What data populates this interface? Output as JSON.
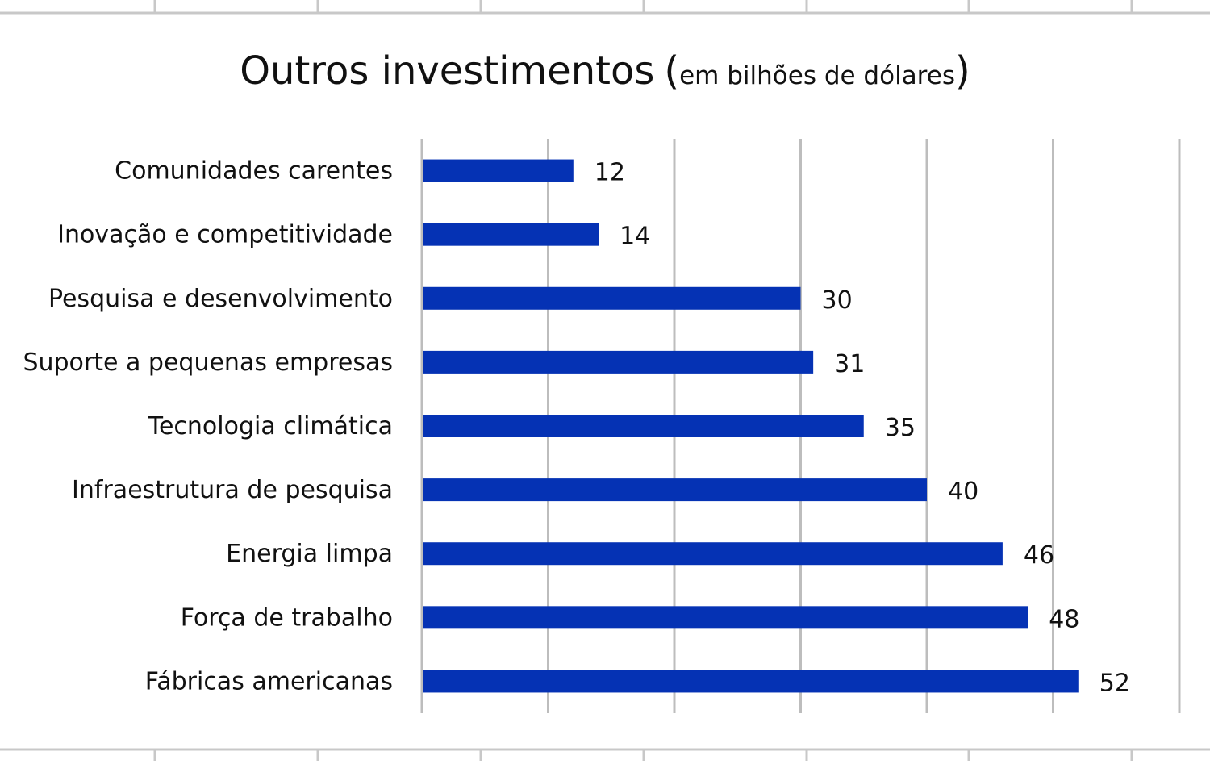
{
  "chart_data": {
    "type": "bar",
    "orientation": "horizontal",
    "title": "Outros investimentos",
    "subtitle": "em bilhões de dólares",
    "categories": [
      "Comunidades carentes",
      "Inovação e competitividade",
      "Pesquisa e desenvolvimento",
      "Suporte a pequenas empresas",
      "Tecnologia climática",
      "Infraestrutura de pesquisa",
      "Energia limpa",
      "Força de trabalho",
      "Fábricas americanas"
    ],
    "values": [
      12,
      14,
      30,
      31,
      35,
      40,
      46,
      48,
      52
    ],
    "data_labels": [
      "12",
      "14",
      "30",
      "31",
      "35",
      "40",
      "46",
      "48",
      "52"
    ],
    "xlim": [
      0,
      60
    ],
    "x_major_step": 10,
    "grid": true,
    "legend": "none",
    "colors": {
      "bar": "#0532B4",
      "grid": "#BDBDBD",
      "sheet_grid": "#C8C8C8",
      "text": "#111111"
    }
  }
}
